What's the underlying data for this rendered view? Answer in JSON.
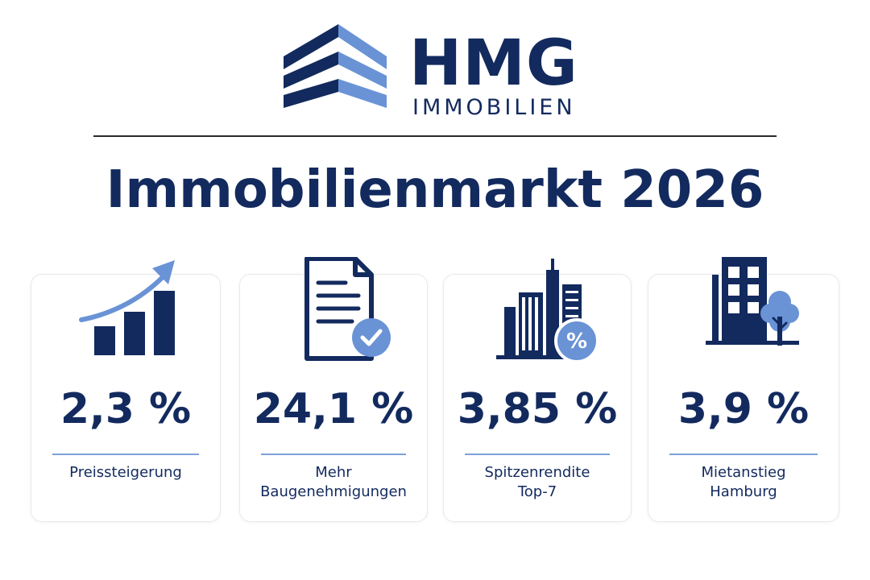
{
  "brand": {
    "name": "HMG",
    "subtitle": "IMMOBILIEN"
  },
  "title": "Immobilienmarkt 2026",
  "colors": {
    "primary": "#132a5e",
    "accent": "#6a93d6",
    "divider": "#7f9fd8"
  },
  "stats": [
    {
      "icon": "bar-chart-growth-icon",
      "value": "2,3 %",
      "label_lines": [
        "Preissteigerung"
      ]
    },
    {
      "icon": "document-check-icon",
      "value": "24,1 %",
      "label_lines": [
        "Mehr",
        "Baugenehmigungen"
      ]
    },
    {
      "icon": "city-skyline-percent-icon",
      "value": "3,85 %",
      "label_lines": [
        "Spitzenrendite",
        "Top-7"
      ]
    },
    {
      "icon": "building-tree-icon",
      "value": "3,9 %",
      "label_lines": [
        "Mietanstieg",
        "Hamburg"
      ]
    }
  ]
}
